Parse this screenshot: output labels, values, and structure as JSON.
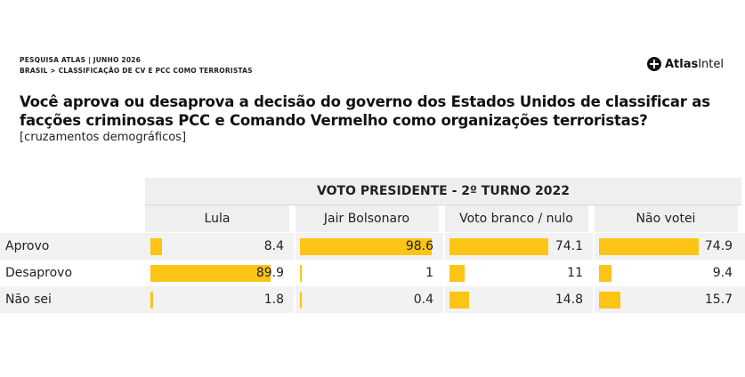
{
  "header": {
    "meta_line1": "PESQUISA ATLAS | JUNHO 2026",
    "meta_line2": "BRASIL > CLASSIFICAÇÃO DE CV E PCC COMO TERRORISTAS",
    "logo_brand": "Atlas",
    "logo_intel": "Intel",
    "logo_icon": "atlas-cross-icon"
  },
  "title": "Você aprova ou desaprova a decisão do governo dos Estados Unidos de classificar as facções criminosas PCC e Comando Vermelho como organizações terroristas?",
  "subtitle": "[cruzamentos demográficos]",
  "colors": {
    "bar": "#fcc415",
    "header_bg": "#efefef",
    "row_shade": "#f2f2f2"
  },
  "chart_data": {
    "type": "table",
    "group_label": "VOTO PRESIDENTE - 2º TURNO 2022",
    "categories": [
      "Lula",
      "Jair Bolsonaro",
      "Voto branco / nulo",
      "Não votei"
    ],
    "rows": [
      "Aprovo",
      "Desaprovo",
      "Não sei"
    ],
    "series": [
      {
        "name": "Aprovo",
        "values": [
          8.4,
          98.6,
          74.1,
          74.9
        ]
      },
      {
        "name": "Desaprovo",
        "values": [
          89.9,
          1,
          11,
          9.4
        ]
      },
      {
        "name": "Não sei",
        "values": [
          1.8,
          0.4,
          14.8,
          15.7
        ]
      }
    ],
    "value_range": [
      0,
      100
    ]
  }
}
